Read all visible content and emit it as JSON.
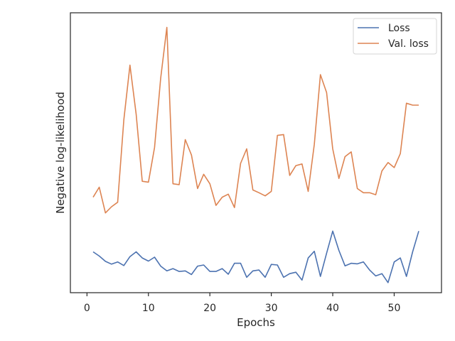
{
  "chart_data": {
    "type": "line",
    "title": "",
    "xlabel": "Epochs",
    "ylabel": "Negative log-likelihood",
    "xlim": [
      -2.7,
      57.7
    ],
    "ylim": [
      0,
      100
    ],
    "x_ticks": [
      0,
      10,
      20,
      30,
      40,
      50
    ],
    "y_ticks_shown": false,
    "grid": false,
    "legend_position": "top-right",
    "x": [
      1,
      2,
      3,
      4,
      5,
      6,
      7,
      8,
      9,
      10,
      11,
      12,
      13,
      14,
      15,
      16,
      17,
      18,
      19,
      20,
      21,
      22,
      23,
      24,
      25,
      26,
      27,
      28,
      29,
      30,
      31,
      32,
      33,
      34,
      35,
      36,
      37,
      38,
      39,
      40,
      41,
      42,
      43,
      44,
      45,
      46,
      47,
      48,
      49,
      50,
      51,
      52,
      53,
      54
    ],
    "series": [
      {
        "name": "Loss",
        "color": "#4c72b0",
        "values": [
          14.6,
          13.1,
          11.2,
          10.2,
          11.0,
          9.7,
          12.9,
          14.6,
          12.4,
          11.3,
          12.7,
          9.5,
          7.8,
          8.6,
          7.6,
          7.8,
          6.5,
          9.5,
          9.9,
          7.6,
          7.6,
          8.6,
          6.6,
          10.5,
          10.5,
          5.5,
          7.8,
          8.1,
          5.5,
          10.1,
          9.9,
          5.5,
          6.8,
          7.3,
          4.5,
          12.4,
          14.8,
          5.8,
          14.1,
          22.0,
          15.1,
          9.6,
          10.5,
          10.3,
          11.0,
          8.1,
          6.0,
          6.8,
          3.6,
          11.0,
          12.4,
          5.8,
          14.6,
          22.0
        ]
      },
      {
        "name": "Val. loss",
        "color": "#dd8452",
        "values": [
          34.1,
          37.7,
          28.5,
          30.7,
          32.3,
          61.8,
          81.3,
          63.8,
          39.8,
          39.5,
          51.9,
          76.6,
          94.8,
          38.9,
          38.6,
          54.7,
          49.2,
          37.2,
          42.3,
          38.9,
          31.2,
          34.1,
          35.2,
          30.4,
          46.2,
          51.4,
          36.7,
          35.7,
          34.6,
          36.2,
          56.2,
          56.5,
          41.9,
          45.4,
          46.0,
          36.2,
          53.0,
          77.9,
          71.5,
          51.4,
          40.8,
          48.6,
          50.3,
          37.2,
          35.7,
          35.7,
          35.0,
          43.5,
          46.5,
          44.7,
          49.7,
          67.7,
          67.0,
          67.0
        ]
      }
    ]
  }
}
